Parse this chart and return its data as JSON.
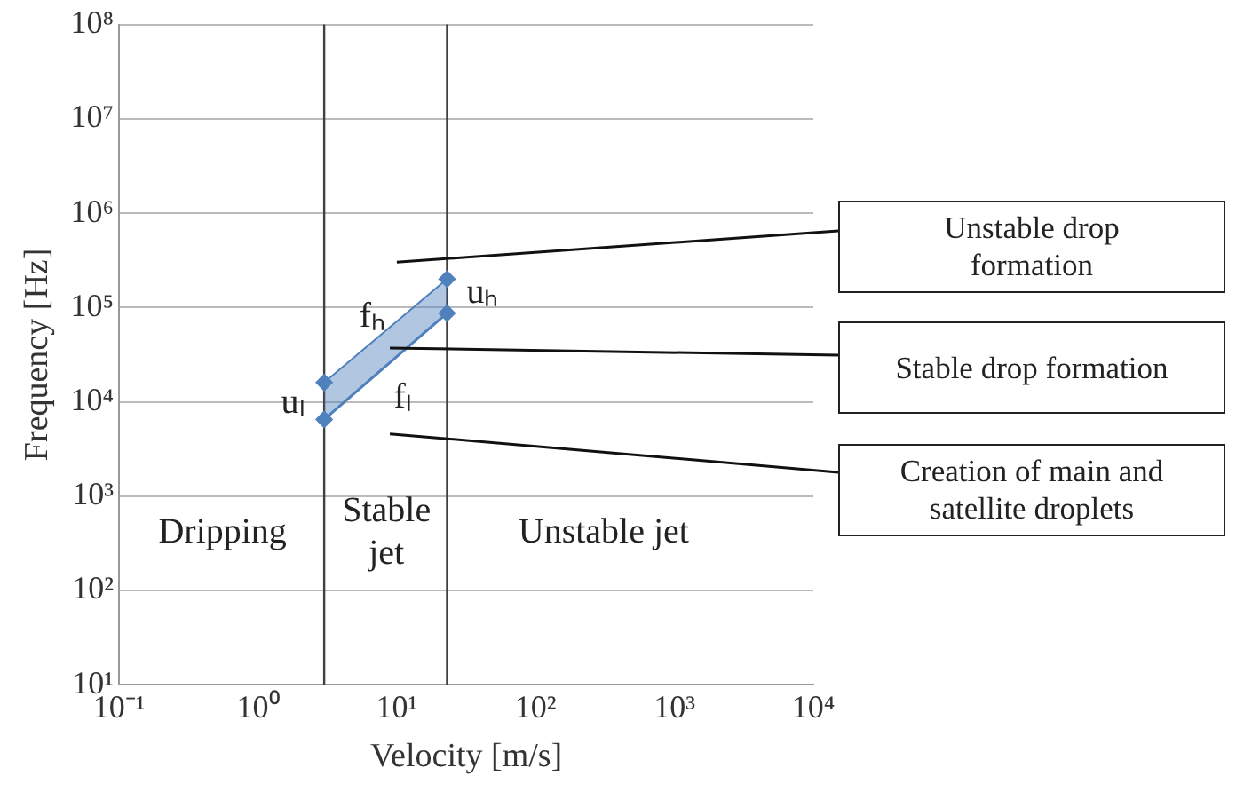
{
  "chart_data": {
    "type": "line",
    "xlabel": "Velocity [m/s]",
    "ylabel": "Frequency [Hz]",
    "log": "xy",
    "xlim": [
      0.1,
      10000
    ],
    "ylim": [
      10,
      100000000
    ],
    "xticks": [
      {
        "value": 0.1,
        "label": "10⁻¹"
      },
      {
        "value": 1,
        "label": "10⁰"
      },
      {
        "value": 10,
        "label": "10¹"
      },
      {
        "value": 100,
        "label": "10²"
      },
      {
        "value": 1000,
        "label": "10³"
      },
      {
        "value": 10000,
        "label": "10⁴"
      }
    ],
    "yticks": [
      {
        "value": 10,
        "label": "10¹"
      },
      {
        "value": 100,
        "label": "10²"
      },
      {
        "value": 1000,
        "label": "10³"
      },
      {
        "value": 10000,
        "label": "10⁴"
      },
      {
        "value": 100000,
        "label": "10⁵"
      },
      {
        "value": 1000000,
        "label": "10⁶"
      },
      {
        "value": 10000000,
        "label": "10⁷"
      },
      {
        "value": 100000000,
        "label": "10⁸"
      }
    ],
    "grid": "y",
    "legend": false,
    "marker": "diamond",
    "series": [
      {
        "color": "#4f81bd",
        "x": [
          3,
          23
        ],
        "values": [
          6500,
          87000
        ],
        "lower": [
          6500,
          87000
        ],
        "upper": [
          16000,
          200000
        ]
      }
    ],
    "ref_lines": [
      {
        "axis": "x",
        "value": 3,
        "color": "#404040"
      },
      {
        "axis": "x",
        "value": 23,
        "color": "#404040"
      }
    ],
    "annotations": [
      "uₗ",
      "fₕ",
      "fₗ",
      {
        "text": "uₕ",
        "x": 23,
        "y": 200000
      },
      "Dripping",
      "Stable jet",
      "Unstable jet",
      "Unstable drop formation",
      "Stable drop formation",
      "Creation of main and satellite droplets"
    ]
  }
}
